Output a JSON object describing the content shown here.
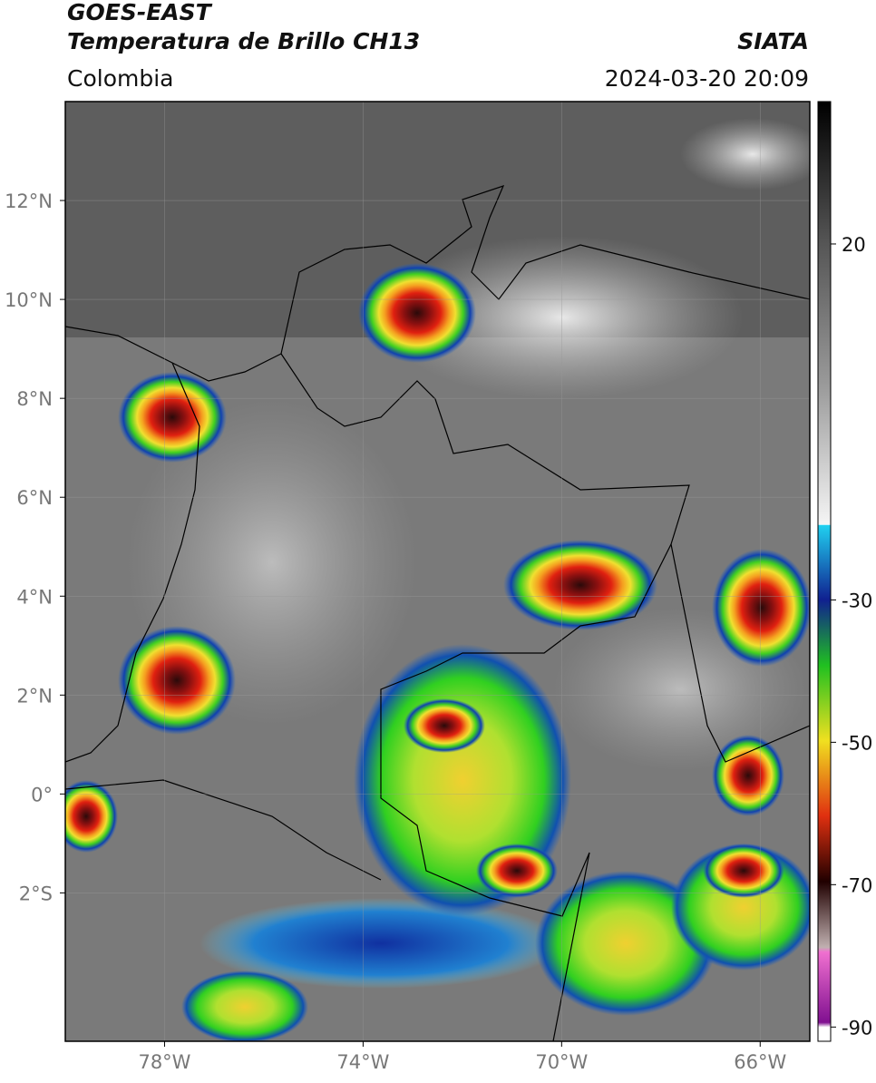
{
  "header": {
    "satellite": "GOES-EAST",
    "product": "Temperatura de Brillo CH13",
    "region": "Colombia",
    "source": "SIATA",
    "datetime": "2024-03-20 20:09"
  },
  "map": {
    "lonlim": [
      -80,
      -65
    ],
    "latlim": [
      -5,
      14
    ],
    "grid": true,
    "lonticks": [
      {
        "value": -78,
        "label": "78°W"
      },
      {
        "value": -74,
        "label": "74°W"
      },
      {
        "value": -70,
        "label": "70°W"
      },
      {
        "value": -66,
        "label": "66°W"
      }
    ],
    "latticks": [
      {
        "value": 12,
        "label": "12°N"
      },
      {
        "value": 10,
        "label": "10°N"
      },
      {
        "value": 8,
        "label": "8°N"
      },
      {
        "value": 6,
        "label": "6°N"
      },
      {
        "value": 4,
        "label": "4°N"
      },
      {
        "value": 2,
        "label": "2°N"
      },
      {
        "value": 0,
        "label": "0°"
      },
      {
        "value": -2,
        "label": "2°S"
      }
    ]
  },
  "colorbar": {
    "lim": [
      -92,
      40
    ],
    "ticks": [
      20,
      -30,
      -50,
      -70,
      -90
    ]
  }
}
